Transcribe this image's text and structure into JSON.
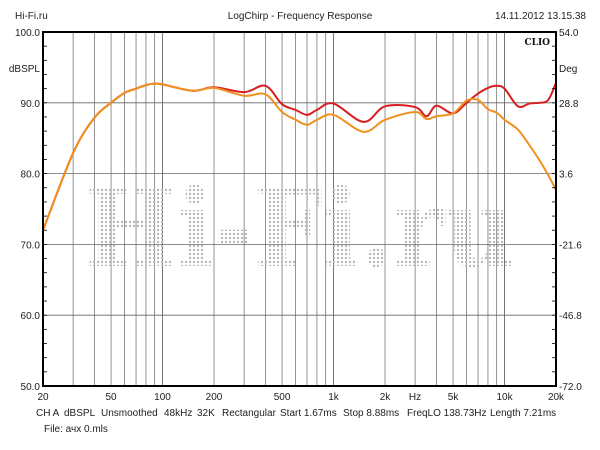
{
  "header": {
    "left": "Hi-Fi.ru",
    "title": "LogChirp - Frequency Response",
    "timestamp": "14.11.2012 13.15.38"
  },
  "brand_label": "CLIO",
  "watermark": "Hi-Fi.ru",
  "footer": {
    "info": [
      "CH A",
      "dBSPL",
      "Unsmoothed",
      "48kHz",
      "32K",
      "Rectangular",
      "Start 1.67ms",
      "Stop 8.88ms",
      "FreqLO 138.73Hz",
      "Length 7.21ms"
    ],
    "file": "File: ачх 0.mls"
  },
  "colors": {
    "red": "#d81e1e",
    "orange": "#f0901e",
    "grid": "#555555",
    "watermark": "#b8b8b8"
  },
  "chart_data": {
    "type": "line",
    "title": "LogChirp - Frequency Response",
    "xlabel": "Hz",
    "ylabel": "dBSPL",
    "ylabel_right": "Deg",
    "xscale": "log",
    "xlim": [
      20,
      20000
    ],
    "ylim": [
      50,
      100
    ],
    "ylim_right": [
      -72,
      54
    ],
    "x_ticks": [
      {
        "v": 20,
        "l": "20"
      },
      {
        "v": 50,
        "l": "50"
      },
      {
        "v": 100,
        "l": "100"
      },
      {
        "v": 200,
        "l": "200"
      },
      {
        "v": 500,
        "l": "500"
      },
      {
        "v": 1000,
        "l": "1k"
      },
      {
        "v": 2000,
        "l": "2k"
      },
      {
        "v": 5000,
        "l": "5k"
      },
      {
        "v": 10000,
        "l": "10k"
      },
      {
        "v": 20000,
        "l": "20k"
      }
    ],
    "x_unit_label": "Hz",
    "y_ticks": [
      "100.0",
      "90.0",
      "80.0",
      "70.0",
      "60.0",
      "50.0"
    ],
    "y_ticks_right": [
      "54.0",
      "28.8",
      "3.6",
      "-21.6",
      "-46.8",
      "-72.0"
    ],
    "grid": true,
    "series": [
      {
        "name": "red",
        "color": "#d81e1e",
        "x": [
          20,
          30,
          40,
          50,
          60,
          70,
          80,
          90,
          100,
          150,
          200,
          300,
          400,
          500,
          600,
          700,
          800,
          1000,
          1500,
          2000,
          3000,
          3500,
          4000,
          5000,
          6000,
          7000,
          8000,
          9000,
          10000,
          12000,
          14000,
          16000,
          18000,
          20000
        ],
        "y": [
          72,
          82.9,
          87.9,
          90.0,
          91.4,
          92.0,
          92.5,
          92.7,
          92.6,
          91.7,
          92.2,
          91.5,
          92.4,
          89.8,
          89.0,
          88.3,
          89.0,
          89.9,
          87.3,
          89.5,
          89.4,
          88.1,
          89.6,
          88.5,
          90.0,
          91.3,
          92.1,
          92.4,
          92.0,
          89.5,
          89.9,
          90.0,
          90.4,
          92.8
        ]
      },
      {
        "name": "orange",
        "color": "#f0901e",
        "x": [
          20,
          30,
          40,
          50,
          60,
          70,
          80,
          90,
          100,
          150,
          200,
          300,
          400,
          500,
          600,
          700,
          800,
          1000,
          1500,
          2000,
          3000,
          3500,
          4000,
          5000,
          6000,
          7000,
          8000,
          9000,
          10000,
          12000,
          14000,
          16000,
          18000,
          20000
        ],
        "y": [
          72,
          82.9,
          87.9,
          90.0,
          91.4,
          92.0,
          92.5,
          92.7,
          92.6,
          91.7,
          92.1,
          91.0,
          91.2,
          88.7,
          87.6,
          86.9,
          87.6,
          88.3,
          85.9,
          87.6,
          88.7,
          87.7,
          88.1,
          88.5,
          90.3,
          90.4,
          89.1,
          88.6,
          87.6,
          86.2,
          84.0,
          81.9,
          79.8,
          77.7
        ]
      }
    ]
  }
}
